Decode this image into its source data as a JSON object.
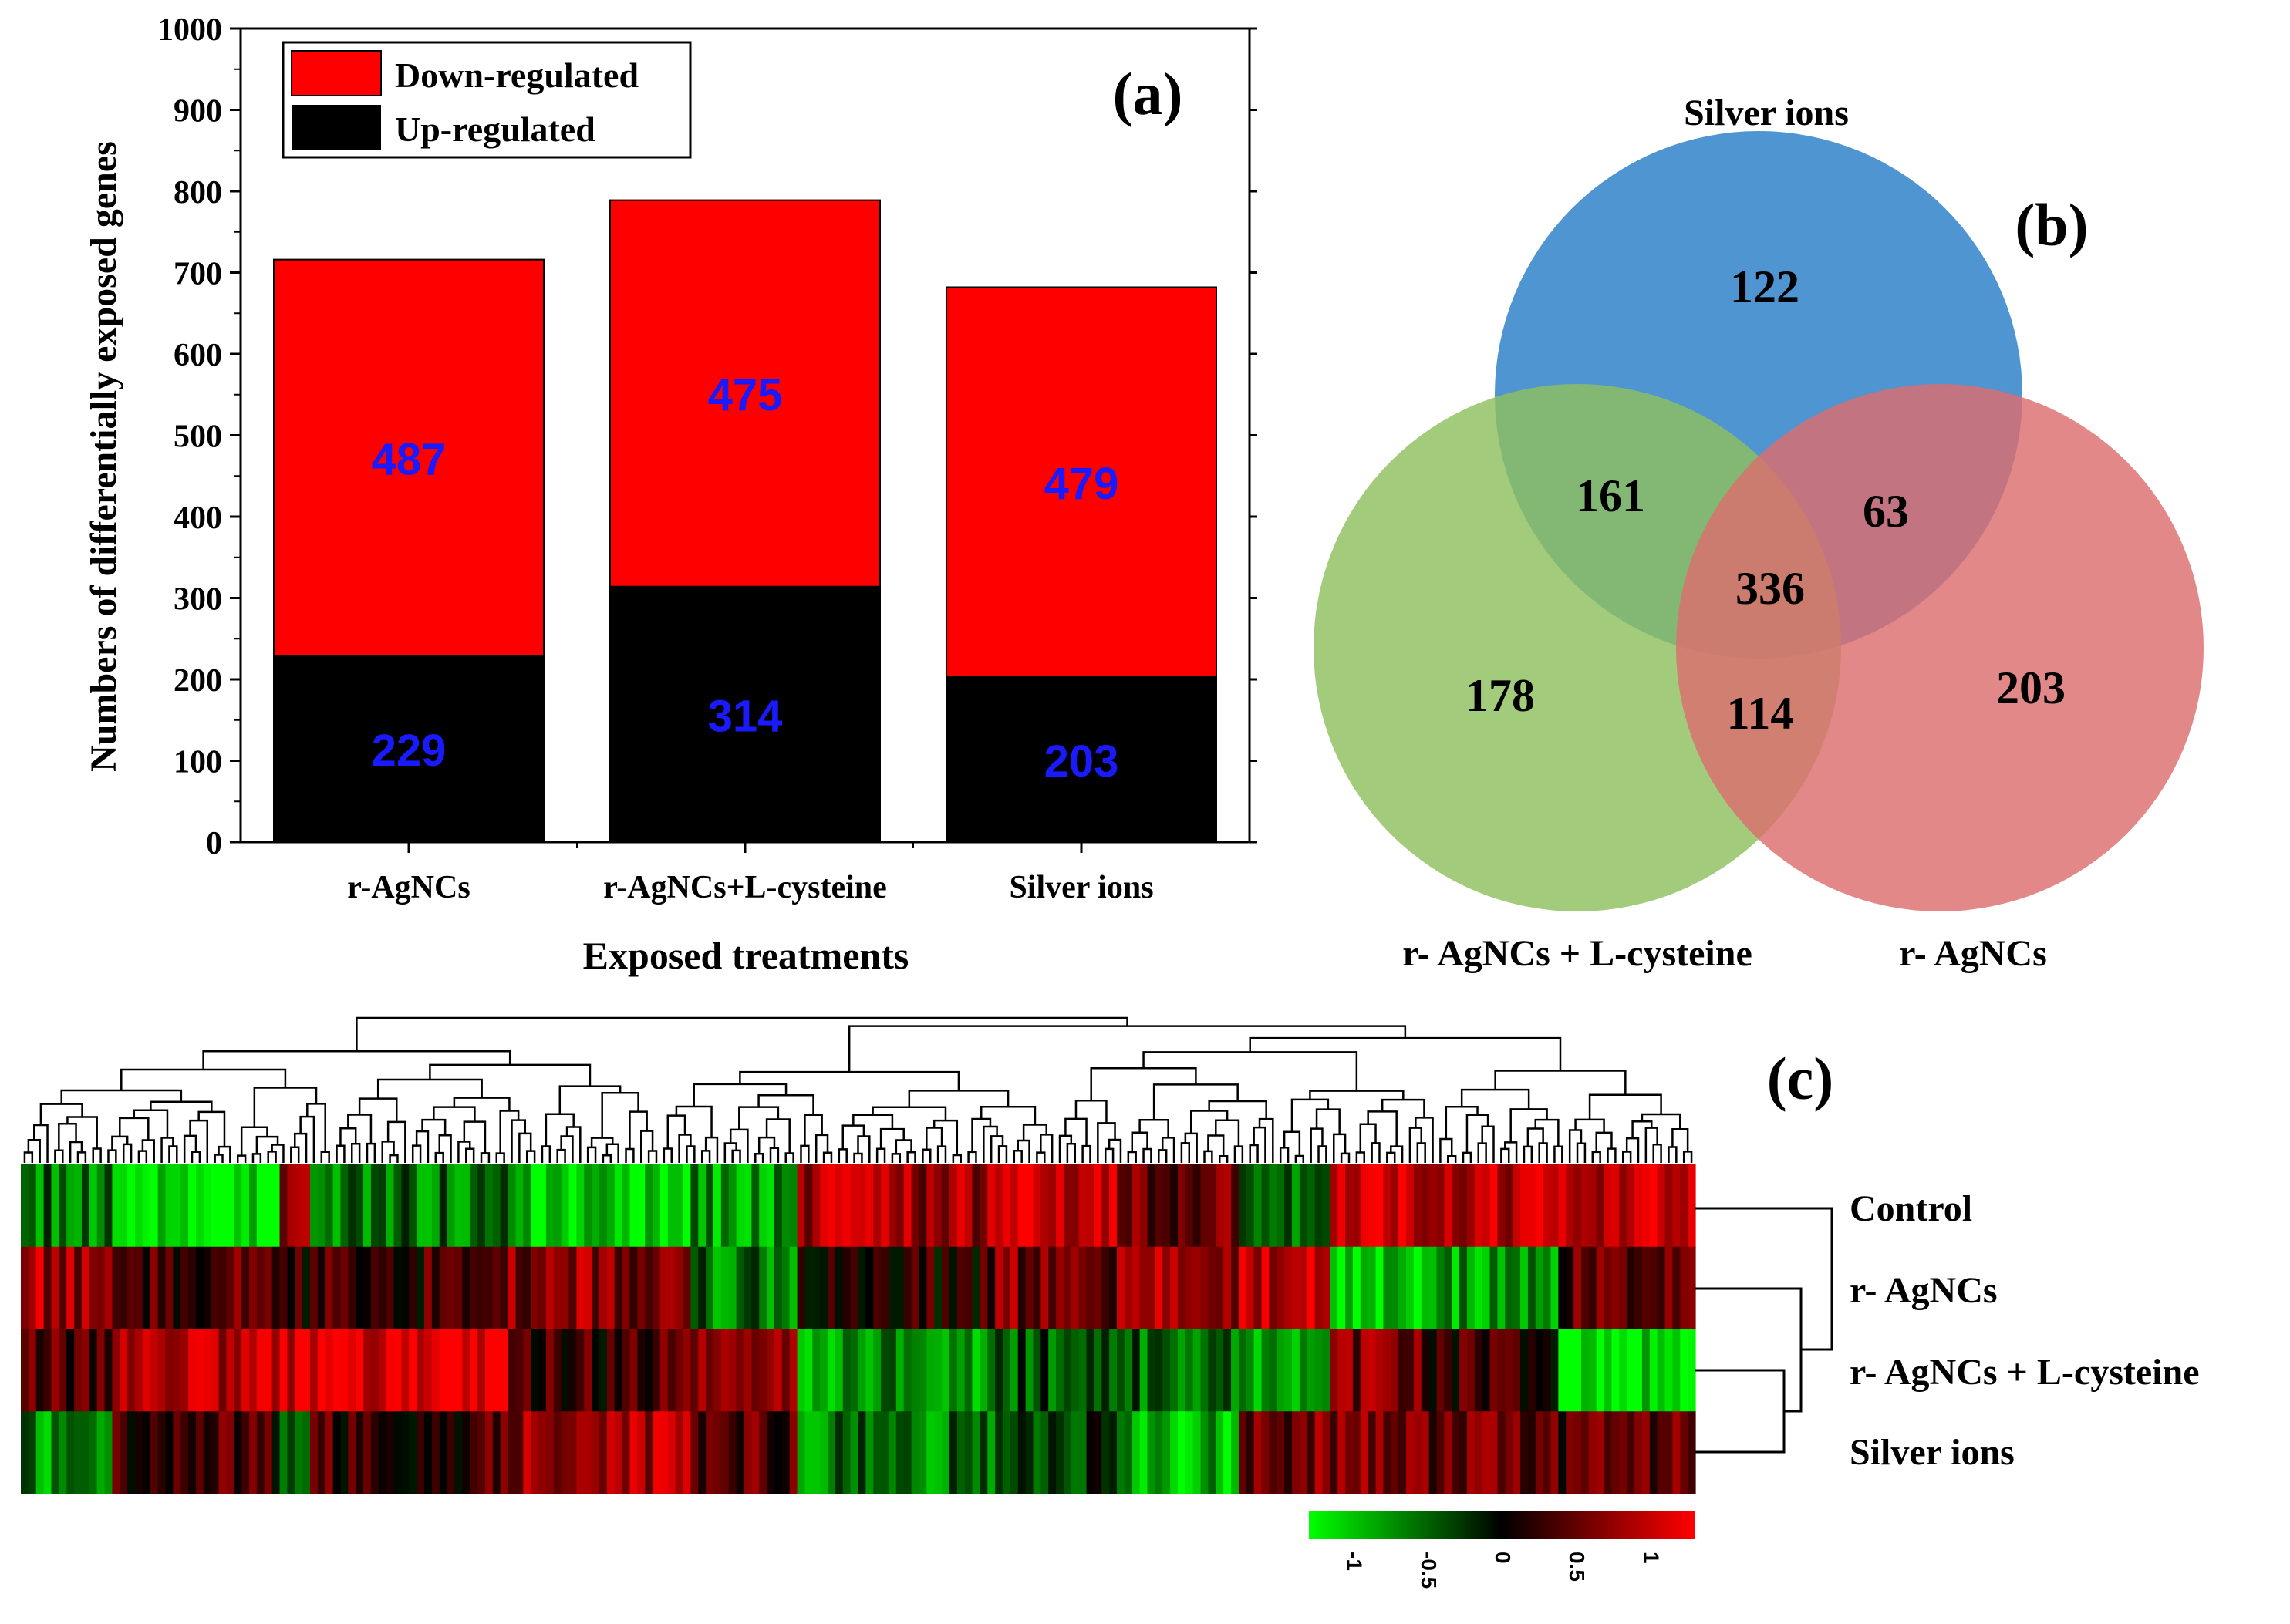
{
  "chart_data": [
    {
      "panel": "(a)",
      "type": "bar",
      "stacked": true,
      "title": "",
      "xlabel": "Exposed treatments",
      "ylabel": "Numbers of differentially exposed genes",
      "ylim": [
        0,
        1000
      ],
      "ytick_step": 100,
      "yticks": [
        "0",
        "100",
        "200",
        "300",
        "400",
        "500",
        "600",
        "700",
        "800",
        "900",
        "1000"
      ],
      "categories": [
        "r-AgNCs",
        "r-AgNCs+L-cysteine",
        "Silver ions"
      ],
      "series": [
        {
          "name": "Up-regulated",
          "color": "#000000",
          "values": [
            229,
            314,
            203
          ]
        },
        {
          "name": "Down-regulated",
          "color": "#ff0000",
          "values": [
            487,
            475,
            479
          ]
        }
      ],
      "data_label_color": "#1a1aff",
      "legend": [
        "Down-regulated",
        "Up-regulated"
      ],
      "legend_position": "top-left"
    },
    {
      "panel": "(b)",
      "type": "venn",
      "sets": [
        {
          "name": "Silver ions",
          "color": "#2f83c9"
        },
        {
          "name": "r- AgNCs + L-cysteine",
          "color": "#8fbf5f"
        },
        {
          "name": "r- AgNCs",
          "color": "#dc6e6e"
        }
      ],
      "regions": [
        {
          "sets": [
            "Silver ions"
          ],
          "value": 122
        },
        {
          "sets": [
            "r- AgNCs + L-cysteine"
          ],
          "value": 178
        },
        {
          "sets": [
            "r- AgNCs"
          ],
          "value": 203
        },
        {
          "sets": [
            "Silver ions",
            "r- AgNCs + L-cysteine"
          ],
          "value": 161
        },
        {
          "sets": [
            "Silver ions",
            "r- AgNCs"
          ],
          "value": 63
        },
        {
          "sets": [
            "r- AgNCs + L-cysteine",
            "r- AgNCs"
          ],
          "value": 114
        },
        {
          "sets": [
            "Silver ions",
            "r- AgNCs + L-cysteine",
            "r- AgNCs"
          ],
          "value": 336
        }
      ]
    },
    {
      "panel": "(c)",
      "type": "heatmap",
      "rows": [
        "Control",
        "r- AgNCs",
        "r- AgNCs + L-cysteine",
        "Silver ions"
      ],
      "color_scale": {
        "low": "#00ff00",
        "mid": "#000000",
        "high": "#ff0000",
        "range": [
          -1.3,
          1.3
        ]
      },
      "colorbar_ticks": [
        "-1",
        "-0.5",
        "0",
        "0.5",
        "1"
      ],
      "colorbar_tick_values": [
        -1,
        -0.5,
        0,
        0.5,
        1
      ],
      "column_segments": [
        {
          "n": 12,
          "values": [
            -0.6,
            0.8,
            0.4,
            -0.7
          ]
        },
        {
          "n": 22,
          "values": [
            -1.2,
            0.4,
            0.9,
            0.3
          ]
        },
        {
          "n": 4,
          "values": [
            0.8,
            0.2,
            1.0,
            -0.4
          ]
        },
        {
          "n": 26,
          "values": [
            -0.6,
            0.3,
            1.2,
            0.3
          ]
        },
        {
          "n": 24,
          "values": [
            -1.1,
            0.7,
            0.3,
            0.8
          ]
        },
        {
          "n": 14,
          "values": [
            -0.8,
            -0.6,
            0.8,
            0.4
          ]
        },
        {
          "n": 26,
          "values": [
            0.8,
            0.2,
            -0.7,
            -0.6
          ]
        },
        {
          "n": 16,
          "values": [
            1.1,
            0.6,
            -0.4,
            -0.3
          ]
        },
        {
          "n": 16,
          "values": [
            0.6,
            0.8,
            -0.5,
            -0.9
          ]
        },
        {
          "n": 12,
          "values": [
            -0.4,
            1.0,
            -0.8,
            0.6
          ]
        },
        {
          "n": 12,
          "values": [
            0.9,
            -1.0,
            0.6,
            0.6
          ]
        },
        {
          "n": 18,
          "values": [
            1.0,
            -0.8,
            0.3,
            0.5
          ]
        },
        {
          "n": 18,
          "values": [
            1.0,
            0.4,
            -1.2,
            0.4
          ]
        }
      ],
      "dendrogram": {
        "rows": true,
        "columns": true
      }
    }
  ],
  "panel_labels": {
    "a": "(a)",
    "b": "(b)",
    "c": "(c)"
  }
}
